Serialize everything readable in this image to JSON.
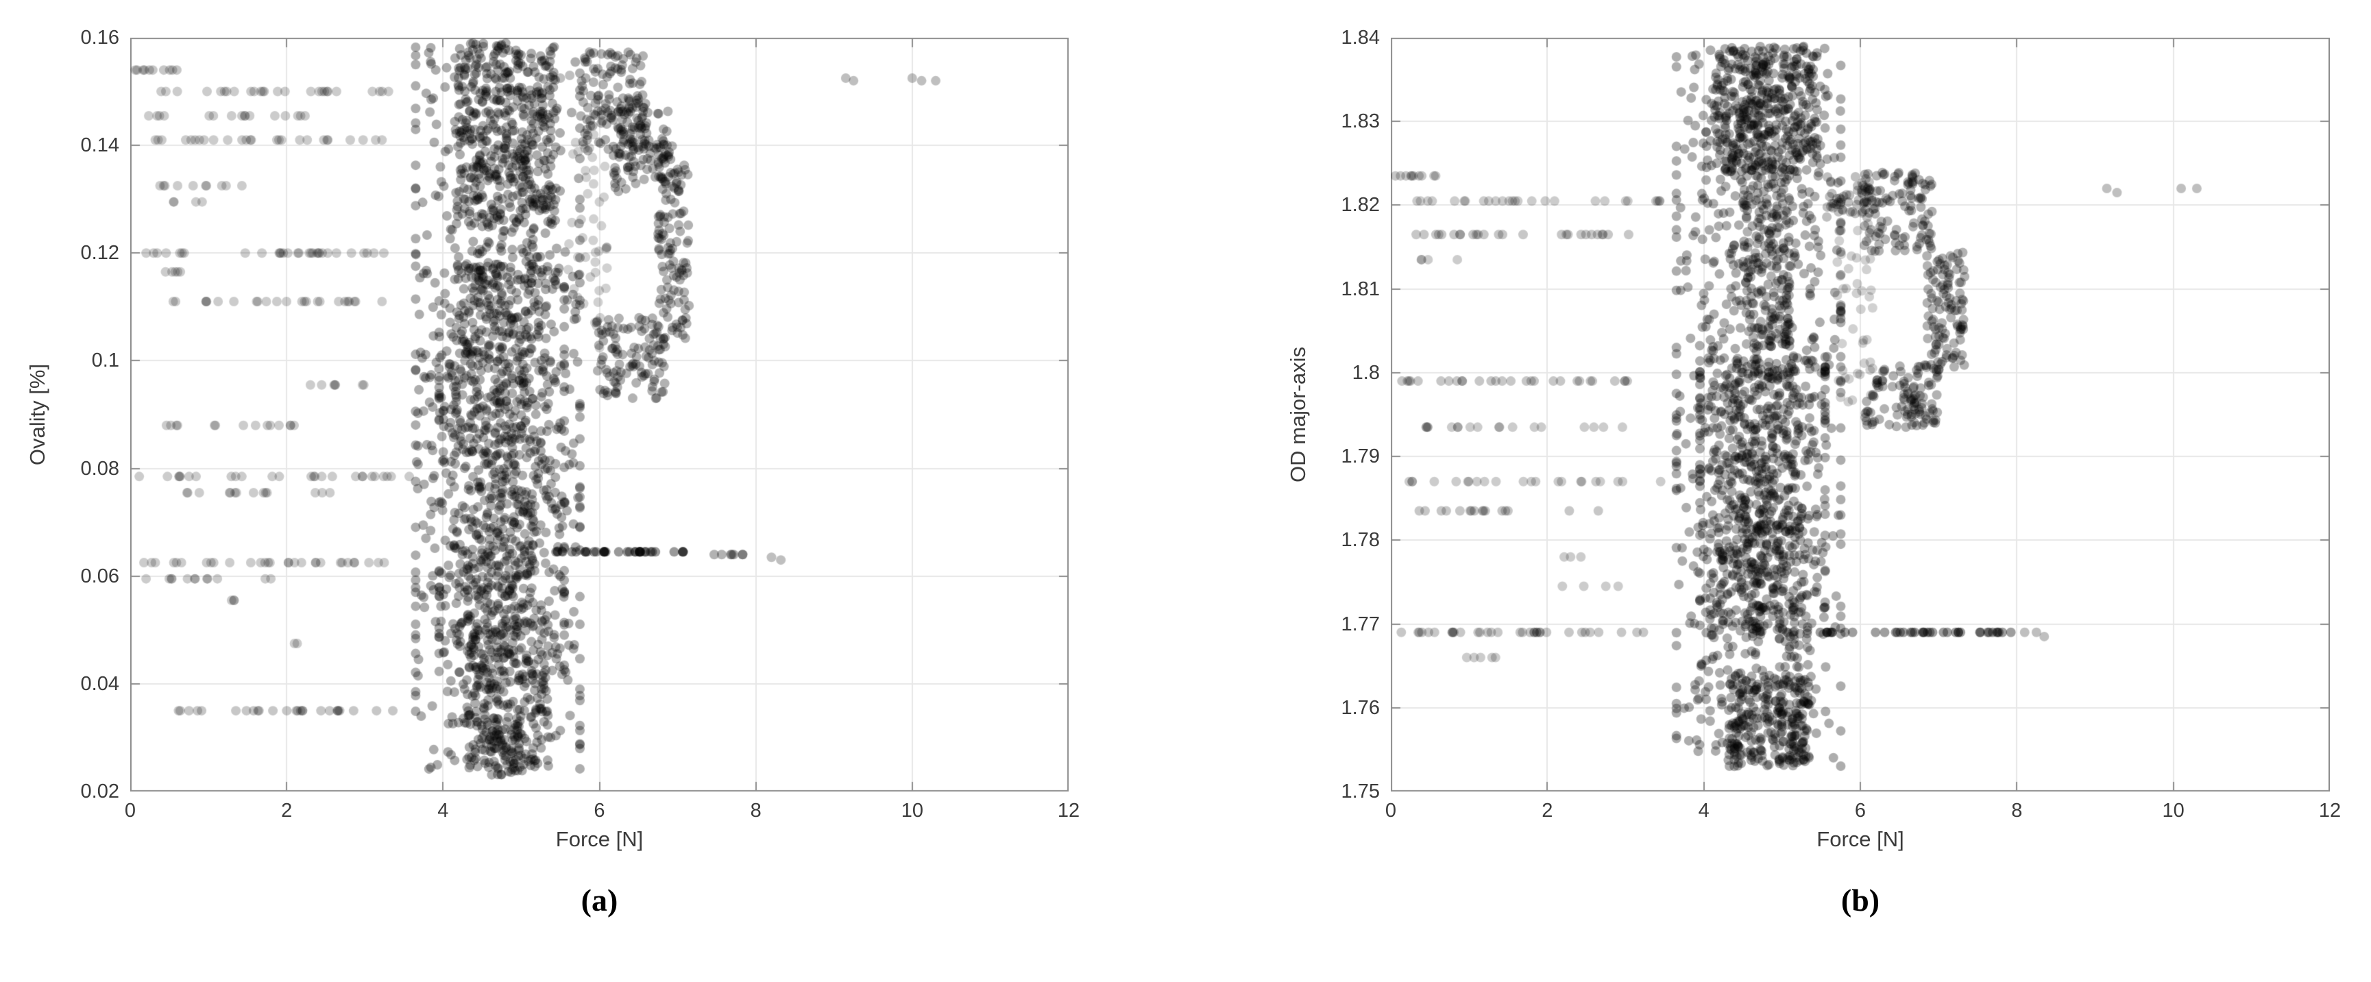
{
  "figure": {
    "background": "#ffffff",
    "style": {
      "grid_color": "#e7e7e7",
      "axis_color": "#8c8c8c",
      "tick_label_color": "#3b3b3b",
      "marker_color": "#000000",
      "marker_radius": 7
    }
  },
  "chart_data": [
    {
      "type": "scatter",
      "caption": "(a)",
      "xlabel": "Force [N]",
      "ylabel": "Ovality [%]",
      "xlim": [
        0,
        12
      ],
      "ylim": [
        0.02,
        0.16
      ],
      "xtick_values": [
        0,
        2,
        4,
        6,
        8,
        10,
        12
      ],
      "xtick_labels": [
        "0",
        "2",
        "4",
        "6",
        "8",
        "10",
        "12"
      ],
      "ytick_values": [
        0.02,
        0.04,
        0.06,
        0.08,
        0.1,
        0.12,
        0.14,
        0.16
      ],
      "ytick_labels": [
        "0.02",
        "0.04",
        "0.06",
        "0.08",
        "0.1",
        "0.12",
        "0.14",
        "0.16"
      ],
      "grid": true,
      "seed": 20240601,
      "clusters": [
        {
          "x": [
            0.05,
            0.6
          ],
          "y": 0.154,
          "n": 10,
          "a": 0.22
        },
        {
          "x": [
            0.3,
            3.35
          ],
          "y": 0.15,
          "n": 26,
          "a": 0.2
        },
        {
          "x": [
            0.2,
            2.5
          ],
          "y": 0.1455,
          "n": 16,
          "a": 0.2
        },
        {
          "x": [
            0.1,
            3.4
          ],
          "y": 0.141,
          "n": 26,
          "a": 0.2
        },
        {
          "x": [
            0.35,
            1.55
          ],
          "y": 0.1325,
          "n": 10,
          "a": 0.2
        },
        {
          "x": [
            0.5,
            0.95
          ],
          "y": 0.1295,
          "n": 4,
          "a": 0.2
        },
        {
          "x": [
            0.05,
            3.3
          ],
          "y": 0.12,
          "n": 30,
          "a": 0.2
        },
        {
          "x": [
            0.3,
            0.8
          ],
          "y": 0.1165,
          "n": 5,
          "a": 0.2
        },
        {
          "x": [
            0.45,
            3.3
          ],
          "y": 0.111,
          "n": 24,
          "a": 0.2
        },
        {
          "x": [
            2.25,
            3.45
          ],
          "y": 0.0955,
          "n": 7,
          "a": 0.2
        },
        {
          "x": [
            0.3,
            2.2
          ],
          "y": 0.088,
          "n": 14,
          "a": 0.2
        },
        {
          "x": [
            0.1,
            3.6
          ],
          "y": 0.0785,
          "n": 26,
          "a": 0.2
        },
        {
          "x": [
            0.5,
            2.75
          ],
          "y": 0.0755,
          "n": 14,
          "a": 0.2
        },
        {
          "x": [
            0.05,
            3.35
          ],
          "y": 0.0625,
          "n": 30,
          "a": 0.2
        },
        {
          "x": [
            0.2,
            2.0
          ],
          "y": 0.0595,
          "n": 12,
          "a": 0.2
        },
        {
          "x": [
            1.25,
            1.45
          ],
          "y": 0.0555,
          "n": 3,
          "a": 0.2
        },
        {
          "x": [
            2.1,
            2.25
          ],
          "y": 0.0475,
          "n": 2,
          "a": 0.2
        },
        {
          "x": [
            0.6,
            3.5
          ],
          "y": 0.035,
          "n": 26,
          "a": 0.22
        },
        {
          "x": [
            3.65,
            5.75
          ],
          "y": [
            0.024,
            0.159
          ],
          "n": 950,
          "a": 0.32,
          "g": true
        },
        {
          "x": [
            3.95,
            5.55
          ],
          "y": [
            0.042,
            0.118
          ],
          "n": 650,
          "a": 0.32,
          "g": true
        },
        {
          "x": [
            4.15,
            5.45
          ],
          "y": [
            0.125,
            0.159
          ],
          "n": 330,
          "a": 0.32
        },
        {
          "x": [
            4.3,
            5.35
          ],
          "y": [
            0.024,
            0.05
          ],
          "n": 160,
          "a": 0.32
        },
        {
          "x": [
            4.55,
            5.05
          ],
          "y": [
            0.023,
            0.034
          ],
          "n": 60,
          "a": 0.32
        },
        {
          "x": [
            5.75,
            6.6
          ],
          "y": [
            0.139,
            0.158
          ],
          "n": 130,
          "a": 0.3
        },
        {
          "x": [
            6.15,
            7.0
          ],
          "y": [
            0.131,
            0.147
          ],
          "n": 110,
          "a": 0.3
        },
        {
          "x": [
            6.75,
            7.15
          ],
          "y": [
            0.104,
            0.138
          ],
          "n": 110,
          "a": 0.3
        },
        {
          "x": [
            5.95,
            6.85
          ],
          "y": [
            0.093,
            0.108
          ],
          "n": 110,
          "a": 0.3
        },
        {
          "x": [
            5.6,
            6.1
          ],
          "y": [
            0.1,
            0.142
          ],
          "n": 45,
          "a": 0.18
        },
        {
          "x": [
            5.4,
            7.1
          ],
          "y": 0.0645,
          "n": 34,
          "a": 0.4
        },
        {
          "x": [
            7.25,
            7.85
          ],
          "y": 0.064,
          "n": 7,
          "a": 0.3
        }
      ],
      "outliers": {
        "a": 0.25,
        "points": [
          [
            5.5,
            0.1525
          ],
          [
            5.62,
            0.153
          ],
          [
            8.2,
            0.0635
          ],
          [
            8.32,
            0.063
          ],
          [
            9.15,
            0.1525
          ],
          [
            9.25,
            0.152
          ],
          [
            10.0,
            0.1525
          ],
          [
            10.12,
            0.152
          ],
          [
            10.3,
            0.152
          ]
        ]
      }
    },
    {
      "type": "scatter",
      "caption": "(b)",
      "xlabel": "Force [N]",
      "ylabel": "OD major-axis",
      "xlim": [
        0,
        12
      ],
      "ylim": [
        1.75,
        1.84
      ],
      "xtick_values": [
        0,
        2,
        4,
        6,
        8,
        10,
        12
      ],
      "xtick_labels": [
        "0",
        "2",
        "4",
        "6",
        "8",
        "10",
        "12"
      ],
      "ytick_values": [
        1.75,
        1.76,
        1.77,
        1.78,
        1.79,
        1.8,
        1.81,
        1.82,
        1.83,
        1.84
      ],
      "ytick_labels": [
        "1.75",
        "1.76",
        "1.77",
        "1.78",
        "1.79",
        "1.8",
        "1.81",
        "1.82",
        "1.83",
        "1.84"
      ],
      "grid": true,
      "seed": 987654321,
      "clusters": [
        {
          "x": [
            0.05,
            0.6
          ],
          "y": 1.8235,
          "n": 10,
          "a": 0.22
        },
        {
          "x": [
            0.3,
            3.5
          ],
          "y": 1.8205,
          "n": 26,
          "a": 0.2
        },
        {
          "x": [
            0.1,
            3.4
          ],
          "y": 1.8165,
          "n": 26,
          "a": 0.22
        },
        {
          "x": [
            0.3,
            1.0
          ],
          "y": 1.8135,
          "n": 4,
          "a": 0.2
        },
        {
          "x": [
            0.05,
            3.5
          ],
          "y": 1.799,
          "n": 28,
          "a": 0.22
        },
        {
          "x": [
            0.3,
            3.0
          ],
          "y": 1.7935,
          "n": 18,
          "a": 0.2
        },
        {
          "x": [
            0.2,
            3.5
          ],
          "y": 1.787,
          "n": 22,
          "a": 0.2
        },
        {
          "x": [
            0.3,
            2.7
          ],
          "y": 1.7835,
          "n": 16,
          "a": 0.22
        },
        {
          "x": [
            2.2,
            2.45
          ],
          "y": 1.778,
          "n": 3,
          "a": 0.2
        },
        {
          "x": [
            0.95,
            3.15
          ],
          "y": 1.7745,
          "n": 4,
          "a": 0.2
        },
        {
          "x": [
            0.05,
            3.55
          ],
          "y": 1.769,
          "n": 34,
          "a": 0.22
        },
        {
          "x": [
            0.9,
            1.45
          ],
          "y": 1.766,
          "n": 5,
          "a": 0.2
        },
        {
          "x": [
            3.65,
            5.75
          ],
          "y": [
            1.753,
            1.839
          ],
          "n": 950,
          "a": 0.32,
          "g": true
        },
        {
          "x": [
            3.95,
            5.55
          ],
          "y": [
            1.768,
            1.802
          ],
          "n": 600,
          "a": 0.32,
          "g": true
        },
        {
          "x": [
            4.15,
            5.45
          ],
          "y": [
            1.824,
            1.839
          ],
          "n": 330,
          "a": 0.32
        },
        {
          "x": [
            4.3,
            5.35
          ],
          "y": [
            1.753,
            1.764
          ],
          "n": 220,
          "a": 0.32
        },
        {
          "x": [
            4.5,
            5.1
          ],
          "y": [
            1.803,
            1.825
          ],
          "n": 150,
          "a": 0.3
        },
        {
          "x": [
            6.05,
            6.95
          ],
          "y": [
            1.8145,
            1.824
          ],
          "n": 110,
          "a": 0.3
        },
        {
          "x": [
            6.85,
            7.35
          ],
          "y": [
            1.8,
            1.8145
          ],
          "n": 110,
          "a": 0.3
        },
        {
          "x": [
            6.05,
            7.0
          ],
          "y": [
            1.7935,
            1.801
          ],
          "n": 110,
          "a": 0.3
        },
        {
          "x": [
            5.7,
            6.2
          ],
          "y": [
            1.796,
            1.818
          ],
          "n": 45,
          "a": 0.18
        },
        {
          "x": [
            5.55,
            6.15
          ],
          "y": [
            1.8185,
            1.8235
          ],
          "n": 50,
          "a": 0.25
        },
        {
          "x": [
            5.45,
            8.0
          ],
          "y": 1.769,
          "n": 40,
          "a": 0.38
        }
      ],
      "outliers": {
        "a": 0.25,
        "points": [
          [
            8.1,
            1.769
          ],
          [
            8.25,
            1.769
          ],
          [
            8.35,
            1.7685
          ],
          [
            9.15,
            1.822
          ],
          [
            9.28,
            1.8215
          ],
          [
            10.1,
            1.822
          ],
          [
            10.3,
            1.822
          ]
        ]
      }
    }
  ]
}
